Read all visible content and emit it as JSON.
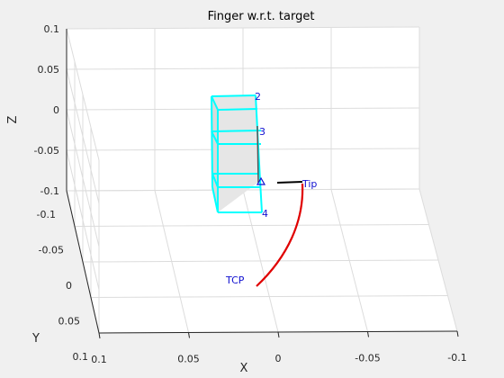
{
  "chart_data": {
    "type": "line3d",
    "title": "Finger  w.r.t. target",
    "xlabel": "X",
    "ylabel": "Y",
    "zlabel": "Z",
    "xlim": [
      -0.1,
      0.1
    ],
    "ylim": [
      -0.1,
      0.1
    ],
    "zlim": [
      -0.1,
      0.1
    ],
    "x_ticks": [
      "0.1",
      "0.05",
      "0",
      "-0.05",
      "-0.1"
    ],
    "y_ticks": [
      "-0.1",
      "-0.05",
      "0",
      "0.05",
      "0.1"
    ],
    "z_ticks": [
      "0.1",
      "0.05",
      "0",
      "-0.05",
      "-0.1"
    ],
    "grid": true,
    "box_color": "#00ffff",
    "trajectory_color": "#e00000",
    "finger_color": "#000000",
    "label_color": "#1010d0",
    "annotations": [
      {
        "text": "2",
        "target": "box-top-corner"
      },
      {
        "text": "3",
        "target": "box-middle-corner"
      },
      {
        "text": "4",
        "target": "box-bottom-corner"
      },
      {
        "text": "Tip",
        "target": "trajectory-end"
      },
      {
        "text": "TCP",
        "target": "trajectory-start"
      }
    ]
  }
}
